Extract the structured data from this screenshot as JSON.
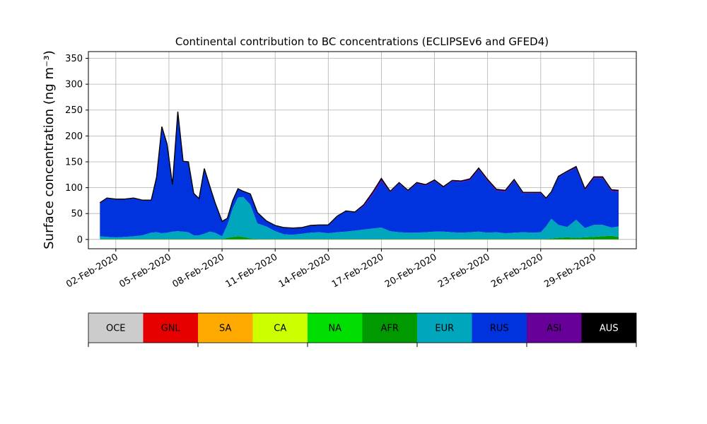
{
  "chart_data": {
    "type": "area",
    "stacked": true,
    "title": "Continental contribution to BC concentrations (ECLIPSEv6 and GFED4)",
    "ylabel": "Surface concentration (ng m⁻³)",
    "xlabel": "",
    "ylim": [
      -18,
      363
    ],
    "xlim": [
      -0.55,
      30.4
    ],
    "yticks": [
      0,
      50,
      100,
      150,
      200,
      250,
      300,
      350
    ],
    "xticks": [
      {
        "value": 1,
        "label": "02-Feb-2020"
      },
      {
        "value": 4,
        "label": "05-Feb-2020"
      },
      {
        "value": 7,
        "label": "08-Feb-2020"
      },
      {
        "value": 10,
        "label": "11-Feb-2020"
      },
      {
        "value": 13,
        "label": "14-Feb-2020"
      },
      {
        "value": 16,
        "label": "17-Feb-2020"
      },
      {
        "value": 19,
        "label": "20-Feb-2020"
      },
      {
        "value": 22,
        "label": "23-Feb-2020"
      },
      {
        "value": 25,
        "label": "26-Feb-2020"
      },
      {
        "value": 28,
        "label": "29-Feb-2020"
      }
    ],
    "x_units": "days since 01-Feb-2020",
    "grid": true,
    "x": [
      0.1,
      0.5,
      1,
      1.5,
      2,
      2.5,
      3,
      3.3,
      3.6,
      3.9,
      4.2,
      4.5,
      4.8,
      5.1,
      5.4,
      5.7,
      6,
      6.3,
      6.6,
      7,
      7.3,
      7.6,
      7.9,
      8.2,
      8.6,
      9,
      9.5,
      10,
      10.5,
      11,
      11.5,
      12,
      12.5,
      13,
      13.5,
      14,
      14.5,
      15,
      15.5,
      16,
      16.5,
      17,
      17.5,
      18,
      18.5,
      19,
      19.5,
      20,
      20.5,
      21,
      21.5,
      22,
      22.5,
      23,
      23.5,
      24,
      24.5,
      25,
      25.3,
      25.6,
      26,
      26.5,
      27,
      27.5,
      28,
      28.5,
      29,
      29.4
    ],
    "series": [
      {
        "name": "AFR",
        "color": "#009900",
        "values": [
          1,
          1,
          1,
          1,
          1,
          1,
          1,
          1,
          1,
          1,
          1,
          1,
          1,
          1,
          1,
          1,
          1,
          1,
          1,
          1,
          3,
          5,
          6,
          5,
          2,
          1,
          1,
          1,
          1,
          1,
          1,
          1,
          1,
          1,
          1,
          1,
          1,
          1,
          1,
          1,
          1,
          1,
          1,
          1,
          1,
          1,
          1,
          1,
          1,
          1,
          1,
          1,
          1,
          1,
          1,
          1,
          1,
          1,
          1,
          2,
          3,
          4,
          3,
          4,
          5,
          6,
          7,
          5
        ]
      },
      {
        "name": "EUR",
        "color": "#00a6bb",
        "values": [
          5,
          4,
          3,
          4,
          5,
          7,
          12,
          13,
          11,
          12,
          14,
          15,
          14,
          13,
          7,
          7,
          10,
          14,
          12,
          5,
          25,
          55,
          75,
          77,
          65,
          30,
          24,
          15,
          9,
          8,
          10,
          12,
          13,
          11,
          13,
          14,
          16,
          18,
          20,
          22,
          15,
          13,
          12,
          12,
          13,
          14,
          14,
          13,
          12,
          13,
          14,
          12,
          13,
          11,
          12,
          13,
          12,
          13,
          24,
          38,
          25,
          20,
          35,
          18,
          23,
          22,
          16,
          20
        ]
      },
      {
        "name": "RUS",
        "color": "#0033dd",
        "values": [
          64,
          74,
          73,
          72,
          73,
          67,
          62,
          105,
          205,
          170,
          90,
          230,
          135,
          135,
          80,
          70,
          125,
          88,
          58,
          28,
          12,
          14,
          16,
          10,
          20,
          20,
          10,
          10,
          12,
          12,
          11,
          13,
          13,
          15,
          30,
          39,
          35,
          45,
          65,
          90,
          75,
          94,
          80,
          95,
          90,
          98,
          85,
          98,
          98,
          100,
          120,
          100,
          80,
          80,
          100,
          75,
          76,
          75,
          53,
          50,
          92,
          106,
          100,
          73,
          90,
          90,
          70,
          67
        ]
      },
      {
        "name": "ASI",
        "color": "#660099",
        "values": [
          1,
          1,
          1,
          1,
          1,
          1,
          1,
          1,
          1,
          1,
          1,
          1,
          1,
          1,
          1,
          1,
          1,
          1,
          1,
          1,
          1,
          1,
          1,
          1,
          1,
          1,
          1,
          1,
          1,
          1,
          1,
          1,
          1,
          1,
          1,
          1,
          1,
          3,
          5,
          5,
          2,
          2,
          2,
          2,
          2,
          2,
          2,
          2,
          2,
          3,
          3,
          3,
          3,
          3,
          3,
          2,
          2,
          2,
          2,
          2,
          2,
          2,
          3,
          3,
          3,
          3,
          3,
          3
        ]
      }
    ],
    "total": [
      71,
      80,
      78,
      78,
      80,
      76,
      76,
      120,
      218,
      184,
      106,
      247,
      151,
      150,
      89,
      79,
      137,
      104,
      72,
      35,
      41,
      75,
      98,
      93,
      88,
      52,
      36,
      27,
      23,
      22,
      23,
      27,
      28,
      28,
      45,
      55,
      53,
      67,
      91,
      118,
      93,
      110,
      95,
      110,
      106,
      115,
      102,
      114,
      113,
      117,
      138,
      116,
      97,
      95,
      116,
      91,
      91,
      91,
      80,
      92,
      122,
      132,
      141,
      98,
      121,
      121,
      96,
      95
    ],
    "colorbar": {
      "categories": [
        "OCE",
        "GNL",
        "SA",
        "CA",
        "NA",
        "AFR",
        "EUR",
        "RUS",
        "ASI",
        "AUS"
      ],
      "colors": [
        "#cccccc",
        "#e60000",
        "#ffaa00",
        "#ccff00",
        "#00dd00",
        "#009900",
        "#00a6bb",
        "#0033dd",
        "#660099",
        "#000000"
      ],
      "label_colors": [
        "#000000",
        "#000000",
        "#000000",
        "#000000",
        "#000000",
        "#000000",
        "#000000",
        "#000000",
        "#000000",
        "#ffffff"
      ]
    }
  }
}
